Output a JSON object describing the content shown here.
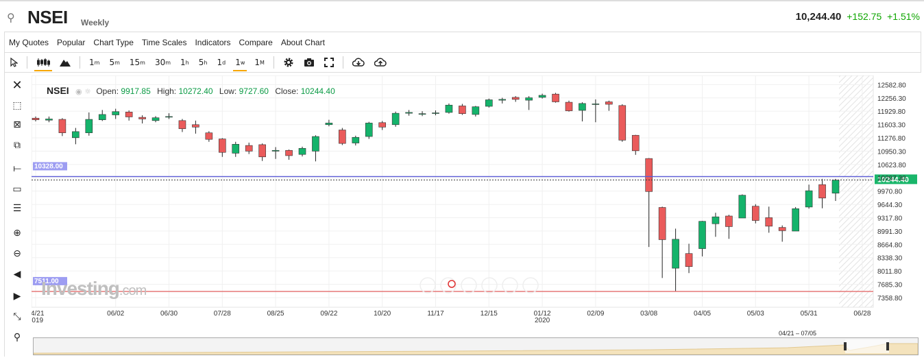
{
  "header": {
    "symbol": "NSEI",
    "period": "Weekly",
    "last": "10,244.40",
    "change": "+152.75",
    "change_pct": "+1.51%"
  },
  "menu": [
    "My Quotes",
    "Popular",
    "Chart Type",
    "Time Scales",
    "Indicators",
    "Compare",
    "About Chart"
  ],
  "toolbar": {
    "intervals": [
      {
        "base": "1",
        "sup": "m"
      },
      {
        "base": "5",
        "sup": "m"
      },
      {
        "base": "15",
        "sup": "m"
      },
      {
        "base": "30",
        "sup": "m"
      },
      {
        "base": "1",
        "sup": "h"
      },
      {
        "base": "5",
        "sup": "h"
      },
      {
        "base": "1",
        "sup": "d"
      },
      {
        "base": "1",
        "sup": "w"
      },
      {
        "base": "1",
        "sup": "M"
      }
    ],
    "active_interval": "1w",
    "icons": [
      "cursor-icon",
      "candles-icon",
      "mountain-icon",
      "gear-icon",
      "camera-icon",
      "fullscreen-icon",
      "download-icon",
      "upload-icon"
    ]
  },
  "overlay": {
    "name": "NSEI",
    "open_label": "Open:",
    "open": "9917.85",
    "high_label": "High:",
    "high": "10272.40",
    "low_label": "Low:",
    "low": "9727.60",
    "close_label": "Close:",
    "close": "10244.40"
  },
  "logo": {
    "main": "Investing",
    "suffix": ".com"
  },
  "navigator": {
    "range": "04/21 – 07/05"
  },
  "colors": {
    "up": "#15b36b",
    "down": "#ea5b5b",
    "hline_blue": "#5b5bd6",
    "hline_red": "#e36c6c",
    "price_tag": "#19b66a"
  },
  "chart_data": {
    "type": "candlestick",
    "y_ticks": [
      "12582.80",
      "12256.30",
      "11929.80",
      "11603.30",
      "11276.80",
      "10950.30",
      "10623.80",
      "10297.30",
      "9970.80",
      "9644.30",
      "9317.80",
      "8991.30",
      "8664.80",
      "8338.30",
      "8011.80",
      "7685.30",
      "7358.80"
    ],
    "x_ticks": [
      {
        "label": "04/21",
        "sub": "2019",
        "i": 0
      },
      {
        "label": "06/02",
        "i": 6
      },
      {
        "label": "06/30",
        "i": 10
      },
      {
        "label": "07/28",
        "i": 14
      },
      {
        "label": "08/25",
        "i": 18
      },
      {
        "label": "09/22",
        "i": 22
      },
      {
        "label": "10/20",
        "i": 26
      },
      {
        "label": "11/17",
        "i": 30
      },
      {
        "label": "12/15",
        "i": 34
      },
      {
        "label": "01/12",
        "sub": "2020",
        "i": 38
      },
      {
        "label": "02/09",
        "i": 42
      },
      {
        "label": "03/08",
        "i": 46
      },
      {
        "label": "04/05",
        "i": 50
      },
      {
        "label": "05/03",
        "i": 54
      },
      {
        "label": "05/31",
        "i": 58
      },
      {
        "label": "06/28",
        "i": 62
      }
    ],
    "ylim": [
      7190,
      12740
    ],
    "hlines": [
      {
        "label": "10328.00",
        "value": 10328.0,
        "color": "#5b5bd6"
      },
      {
        "label": "7511.00",
        "value": 7511.0,
        "color": "#e36c6c"
      }
    ],
    "last_price": {
      "label": "10244.40",
      "value": 10244.4
    },
    "candles": [
      [
        11760,
        11720,
        11800,
        11680
      ],
      [
        11710,
        11740,
        11800,
        11660
      ],
      [
        11730,
        11400,
        11760,
        11320
      ],
      [
        11280,
        11430,
        11520,
        11120
      ],
      [
        11400,
        11730,
        11900,
        11330
      ],
      [
        11720,
        11850,
        11960,
        11690
      ],
      [
        11840,
        11920,
        11990,
        11740
      ],
      [
        11910,
        11790,
        11950,
        11700
      ],
      [
        11780,
        11740,
        11830,
        11630
      ],
      [
        11700,
        11770,
        11810,
        11660
      ],
      [
        11790,
        11800,
        11880,
        11740
      ],
      [
        11700,
        11500,
        11740,
        11420
      ],
      [
        11600,
        11540,
        11700,
        11380
      ],
      [
        11400,
        11240,
        11440,
        11180
      ],
      [
        11250,
        10920,
        11270,
        10810
      ],
      [
        10900,
        11120,
        11180,
        10810
      ],
      [
        11090,
        10950,
        11160,
        10880
      ],
      [
        11110,
        10810,
        11140,
        10710
      ],
      [
        10950,
        10970,
        11050,
        10760
      ],
      [
        10970,
        10840,
        10990,
        10740
      ],
      [
        10870,
        11020,
        11060,
        10820
      ],
      [
        10950,
        11310,
        11340,
        10700
      ],
      [
        11600,
        11640,
        11720,
        11560
      ],
      [
        11470,
        11140,
        11520,
        11100
      ],
      [
        11150,
        11290,
        11330,
        11090
      ],
      [
        11310,
        11640,
        11670,
        11250
      ],
      [
        11650,
        11540,
        11690,
        11470
      ],
      [
        11600,
        11880,
        11920,
        11550
      ],
      [
        11880,
        11900,
        11960,
        11820
      ],
      [
        11860,
        11870,
        11930,
        11810
      ],
      [
        11880,
        11890,
        11950,
        11830
      ],
      [
        11900,
        12080,
        12120,
        11870
      ],
      [
        12060,
        11870,
        12110,
        11840
      ],
      [
        11850,
        12040,
        12060,
        11800
      ],
      [
        12050,
        12210,
        12240,
        12020
      ],
      [
        12200,
        12220,
        12260,
        12120
      ],
      [
        12270,
        12220,
        12300,
        12160
      ],
      [
        12200,
        12260,
        12300,
        11960
      ],
      [
        12270,
        12320,
        12360,
        12240
      ],
      [
        12350,
        12160,
        12380,
        12140
      ],
      [
        12150,
        11940,
        12190,
        11920
      ],
      [
        11950,
        12120,
        12150,
        11680
      ],
      [
        12100,
        12110,
        12220,
        11660
      ],
      [
        12160,
        12100,
        12190,
        11940
      ],
      [
        12070,
        11220,
        12100,
        11180
      ],
      [
        11340,
        10960,
        11350,
        10860
      ],
      [
        10770,
        9960,
        10780,
        8600
      ],
      [
        9570,
        8780,
        9590,
        7840
      ],
      [
        8080,
        8790,
        9050,
        7510
      ],
      [
        8440,
        8120,
        8680,
        7960
      ],
      [
        8560,
        9230,
        9240,
        8370
      ],
      [
        9170,
        9340,
        9440,
        8850
      ],
      [
        9360,
        9100,
        9390,
        8800
      ],
      [
        9310,
        9870,
        9890,
        9310
      ],
      [
        9600,
        9250,
        9650,
        9180
      ],
      [
        9320,
        9110,
        9590,
        8950
      ],
      [
        9080,
        9000,
        9130,
        8730
      ],
      [
        8990,
        9540,
        9580,
        8990
      ],
      [
        9580,
        9980,
        10130,
        9540
      ],
      [
        10130,
        9800,
        10270,
        9550
      ],
      [
        9920,
        10240,
        10270,
        9730
      ]
    ]
  }
}
